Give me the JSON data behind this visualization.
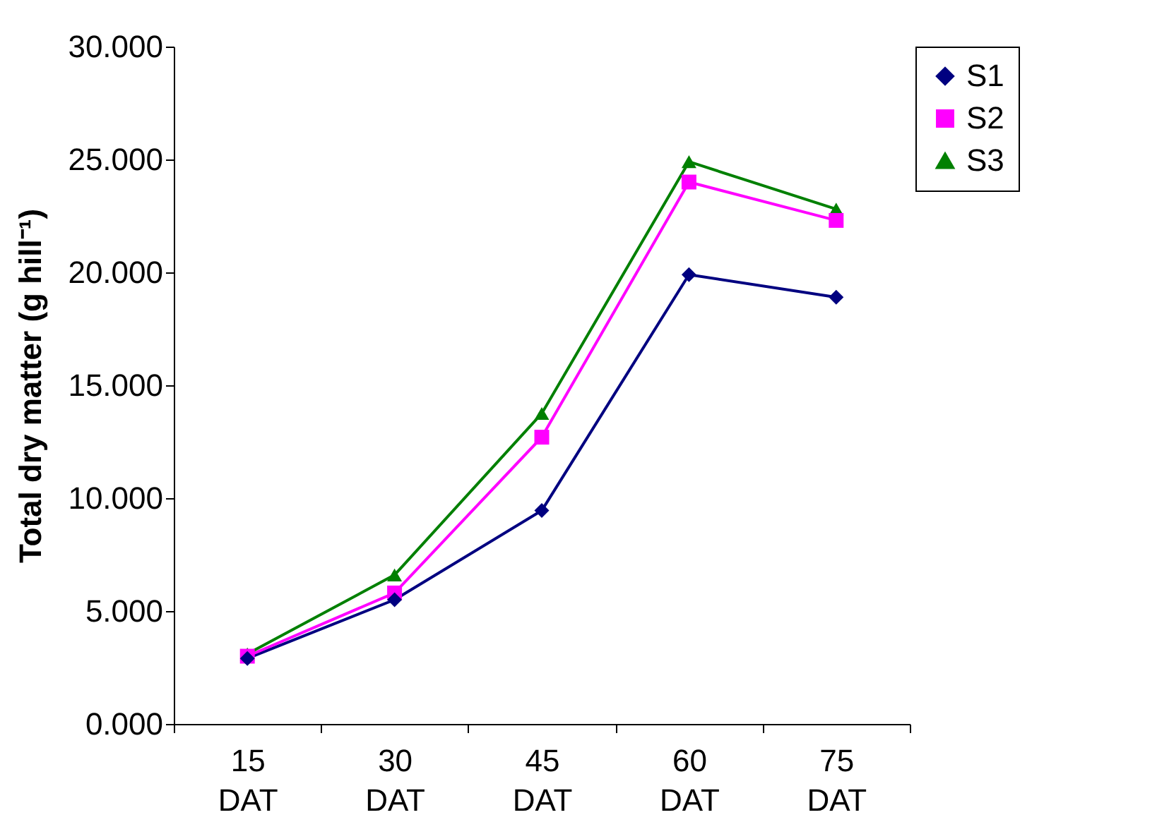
{
  "chart_data": {
    "type": "line",
    "ylabel": "Total dry matter (g hill⁻¹)",
    "categories": [
      "15 DAT",
      "30 DAT",
      "45 DAT",
      "60 DAT",
      "75 DAT"
    ],
    "series": [
      {
        "name": "S1",
        "color": "#000080",
        "marker": "diamond",
        "values": [
          2.9,
          5.5,
          9.45,
          19.9,
          18.9
        ]
      },
      {
        "name": "S2",
        "color": "#ff00ff",
        "marker": "square",
        "values": [
          3.0,
          5.8,
          12.7,
          24.0,
          22.3
        ]
      },
      {
        "name": "S3",
        "color": "#008000",
        "marker": "triangle",
        "values": [
          3.1,
          6.6,
          13.75,
          24.9,
          22.8
        ]
      }
    ],
    "ylim": [
      0,
      30
    ],
    "yticks": [
      {
        "value": 0,
        "label": "0.000"
      },
      {
        "value": 5,
        "label": "5.000"
      },
      {
        "value": 10,
        "label": "10.000"
      },
      {
        "value": 15,
        "label": "15.000"
      },
      {
        "value": 20,
        "label": "20.000"
      },
      {
        "value": 25,
        "label": "25.000"
      },
      {
        "value": 30,
        "label": "30.000"
      }
    ],
    "grid": false,
    "legend": "top right"
  }
}
